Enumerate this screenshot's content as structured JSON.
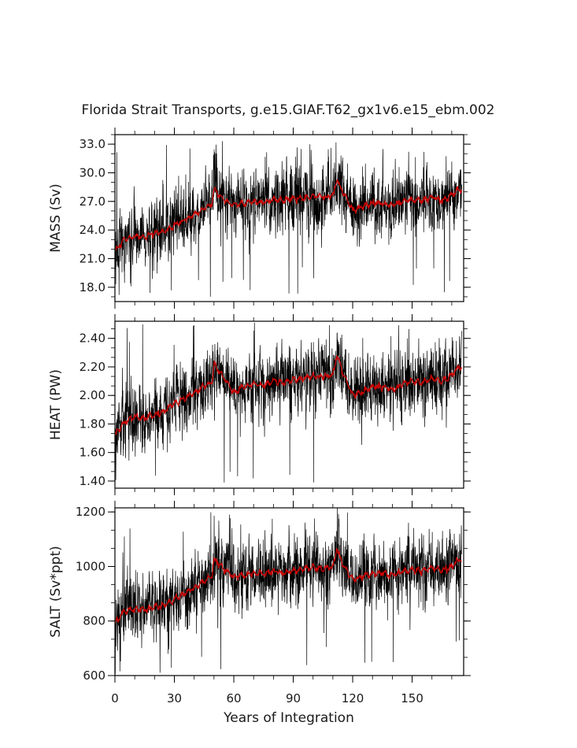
{
  "chart_data": {
    "type": "line",
    "title": "Florida Strait Transports, g.e15.GIAF.T62_gx1v6.e15_ebm.002",
    "xlabel": "Years of Integration",
    "xlim": [
      0,
      176
    ],
    "xticks": [
      0,
      30,
      60,
      90,
      120,
      150
    ],
    "raw_color": "#000000",
    "smooth_color": "#cc0000",
    "note_raw_series": "monthly values drawn as black line; smoothed running mean drawn in red",
    "panels": [
      {
        "id": "mass",
        "ylabel": "MASS (Sv)",
        "ylim": [
          16.5,
          34.0
        ],
        "yticks": [
          18.0,
          21.0,
          24.0,
          27.0,
          30.0,
          33.0
        ],
        "tick_format": "0.0",
        "noise_sd": 1.6,
        "spike_range": [
          17.0,
          33.5
        ],
        "smooth_years": [
          0,
          3,
          5,
          10,
          15,
          20,
          25,
          30,
          35,
          40,
          45,
          49,
          50,
          55,
          60,
          65,
          70,
          75,
          80,
          85,
          90,
          95,
          100,
          105,
          110,
          112,
          115,
          120,
          125,
          130,
          135,
          140,
          145,
          150,
          155,
          160,
          165,
          170,
          173
        ],
        "smooth_values": [
          21.8,
          22.6,
          23.0,
          23.4,
          23.3,
          23.6,
          23.9,
          24.5,
          25.0,
          25.6,
          26.2,
          26.8,
          28.3,
          27.2,
          26.6,
          26.8,
          27.0,
          26.9,
          27.2,
          27.1,
          27.3,
          27.4,
          27.6,
          27.5,
          27.6,
          29.3,
          28.0,
          26.1,
          26.4,
          26.9,
          26.8,
          26.6,
          27.0,
          27.2,
          27.1,
          27.4,
          27.1,
          27.6,
          28.2
        ]
      },
      {
        "id": "heat",
        "ylabel": "HEAT (PW)",
        "ylim": [
          1.35,
          2.52
        ],
        "yticks": [
          1.4,
          1.6,
          1.8,
          2.0,
          2.2,
          2.4
        ],
        "tick_format": "0.00",
        "noise_sd": 0.11,
        "spike_range": [
          1.38,
          2.5
        ],
        "smooth_years": [
          0,
          3,
          5,
          10,
          15,
          20,
          25,
          30,
          35,
          40,
          45,
          49,
          50,
          55,
          60,
          65,
          70,
          75,
          80,
          85,
          90,
          95,
          100,
          105,
          110,
          112,
          115,
          120,
          125,
          130,
          135,
          140,
          145,
          150,
          155,
          160,
          165,
          170,
          173
        ],
        "smooth_values": [
          1.72,
          1.78,
          1.82,
          1.85,
          1.84,
          1.86,
          1.89,
          1.94,
          1.98,
          2.02,
          2.06,
          2.1,
          2.22,
          2.12,
          2.02,
          2.06,
          2.08,
          2.07,
          2.1,
          2.09,
          2.11,
          2.12,
          2.14,
          2.13,
          2.14,
          2.28,
          2.16,
          2.0,
          2.02,
          2.06,
          2.06,
          2.04,
          2.08,
          2.1,
          2.09,
          2.12,
          2.1,
          2.14,
          2.2
        ]
      },
      {
        "id": "salt",
        "ylabel": "SALT (Sv*ppt)",
        "ylim": [
          600,
          1215
        ],
        "yticks": [
          600,
          800,
          1000,
          1200
        ],
        "tick_format": "0",
        "noise_sd": 58,
        "spike_range": [
          610,
          1200
        ],
        "smooth_years": [
          0,
          3,
          5,
          10,
          15,
          20,
          25,
          30,
          35,
          40,
          45,
          49,
          50,
          55,
          60,
          65,
          70,
          75,
          80,
          85,
          90,
          95,
          100,
          105,
          110,
          112,
          115,
          120,
          125,
          130,
          135,
          140,
          145,
          150,
          155,
          160,
          165,
          170,
          173
        ],
        "smooth_values": [
          790,
          820,
          835,
          845,
          842,
          850,
          860,
          880,
          900,
          920,
          945,
          965,
          1030,
          990,
          960,
          968,
          975,
          972,
          982,
          978,
          985,
          990,
          997,
          993,
          997,
          1065,
          1010,
          955,
          962,
          975,
          974,
          968,
          980,
          988,
          984,
          995,
          985,
          1000,
          1025
        ]
      }
    ]
  }
}
